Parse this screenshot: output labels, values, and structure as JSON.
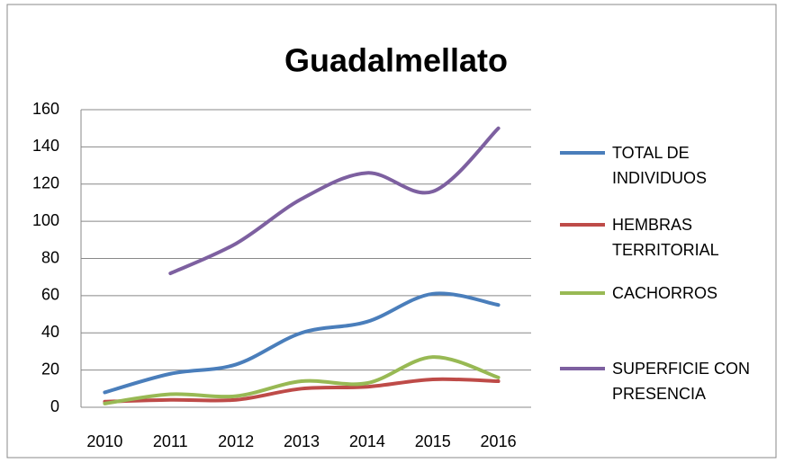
{
  "chart_data": {
    "type": "line",
    "title": "Guadalmellato",
    "categories": [
      "2010",
      "2011",
      "2012",
      "2013",
      "2014",
      "2015",
      "2016"
    ],
    "series": [
      {
        "name": "TOTAL DE INDIVIDUOS",
        "color": "#4a7ebb",
        "values": [
          8,
          18,
          23,
          40,
          46,
          61,
          55
        ]
      },
      {
        "name": "HEMBRAS TERRITORIAL",
        "color": "#be4b48",
        "values": [
          3,
          4,
          4,
          10,
          11,
          15,
          14
        ]
      },
      {
        "name": "CACHORROS",
        "color": "#98b954",
        "values": [
          2,
          7,
          6,
          14,
          13,
          27,
          16
        ]
      },
      {
        "name": "SUPERFICIE CON PRESENCIA",
        "color": "#7d60a0",
        "values": [
          null,
          72,
          88,
          112,
          126,
          116,
          150
        ]
      }
    ],
    "ylim": [
      0,
      160
    ],
    "yticks": [
      0,
      20,
      40,
      60,
      80,
      100,
      120,
      140,
      160
    ],
    "grid": true,
    "legend": "right"
  }
}
